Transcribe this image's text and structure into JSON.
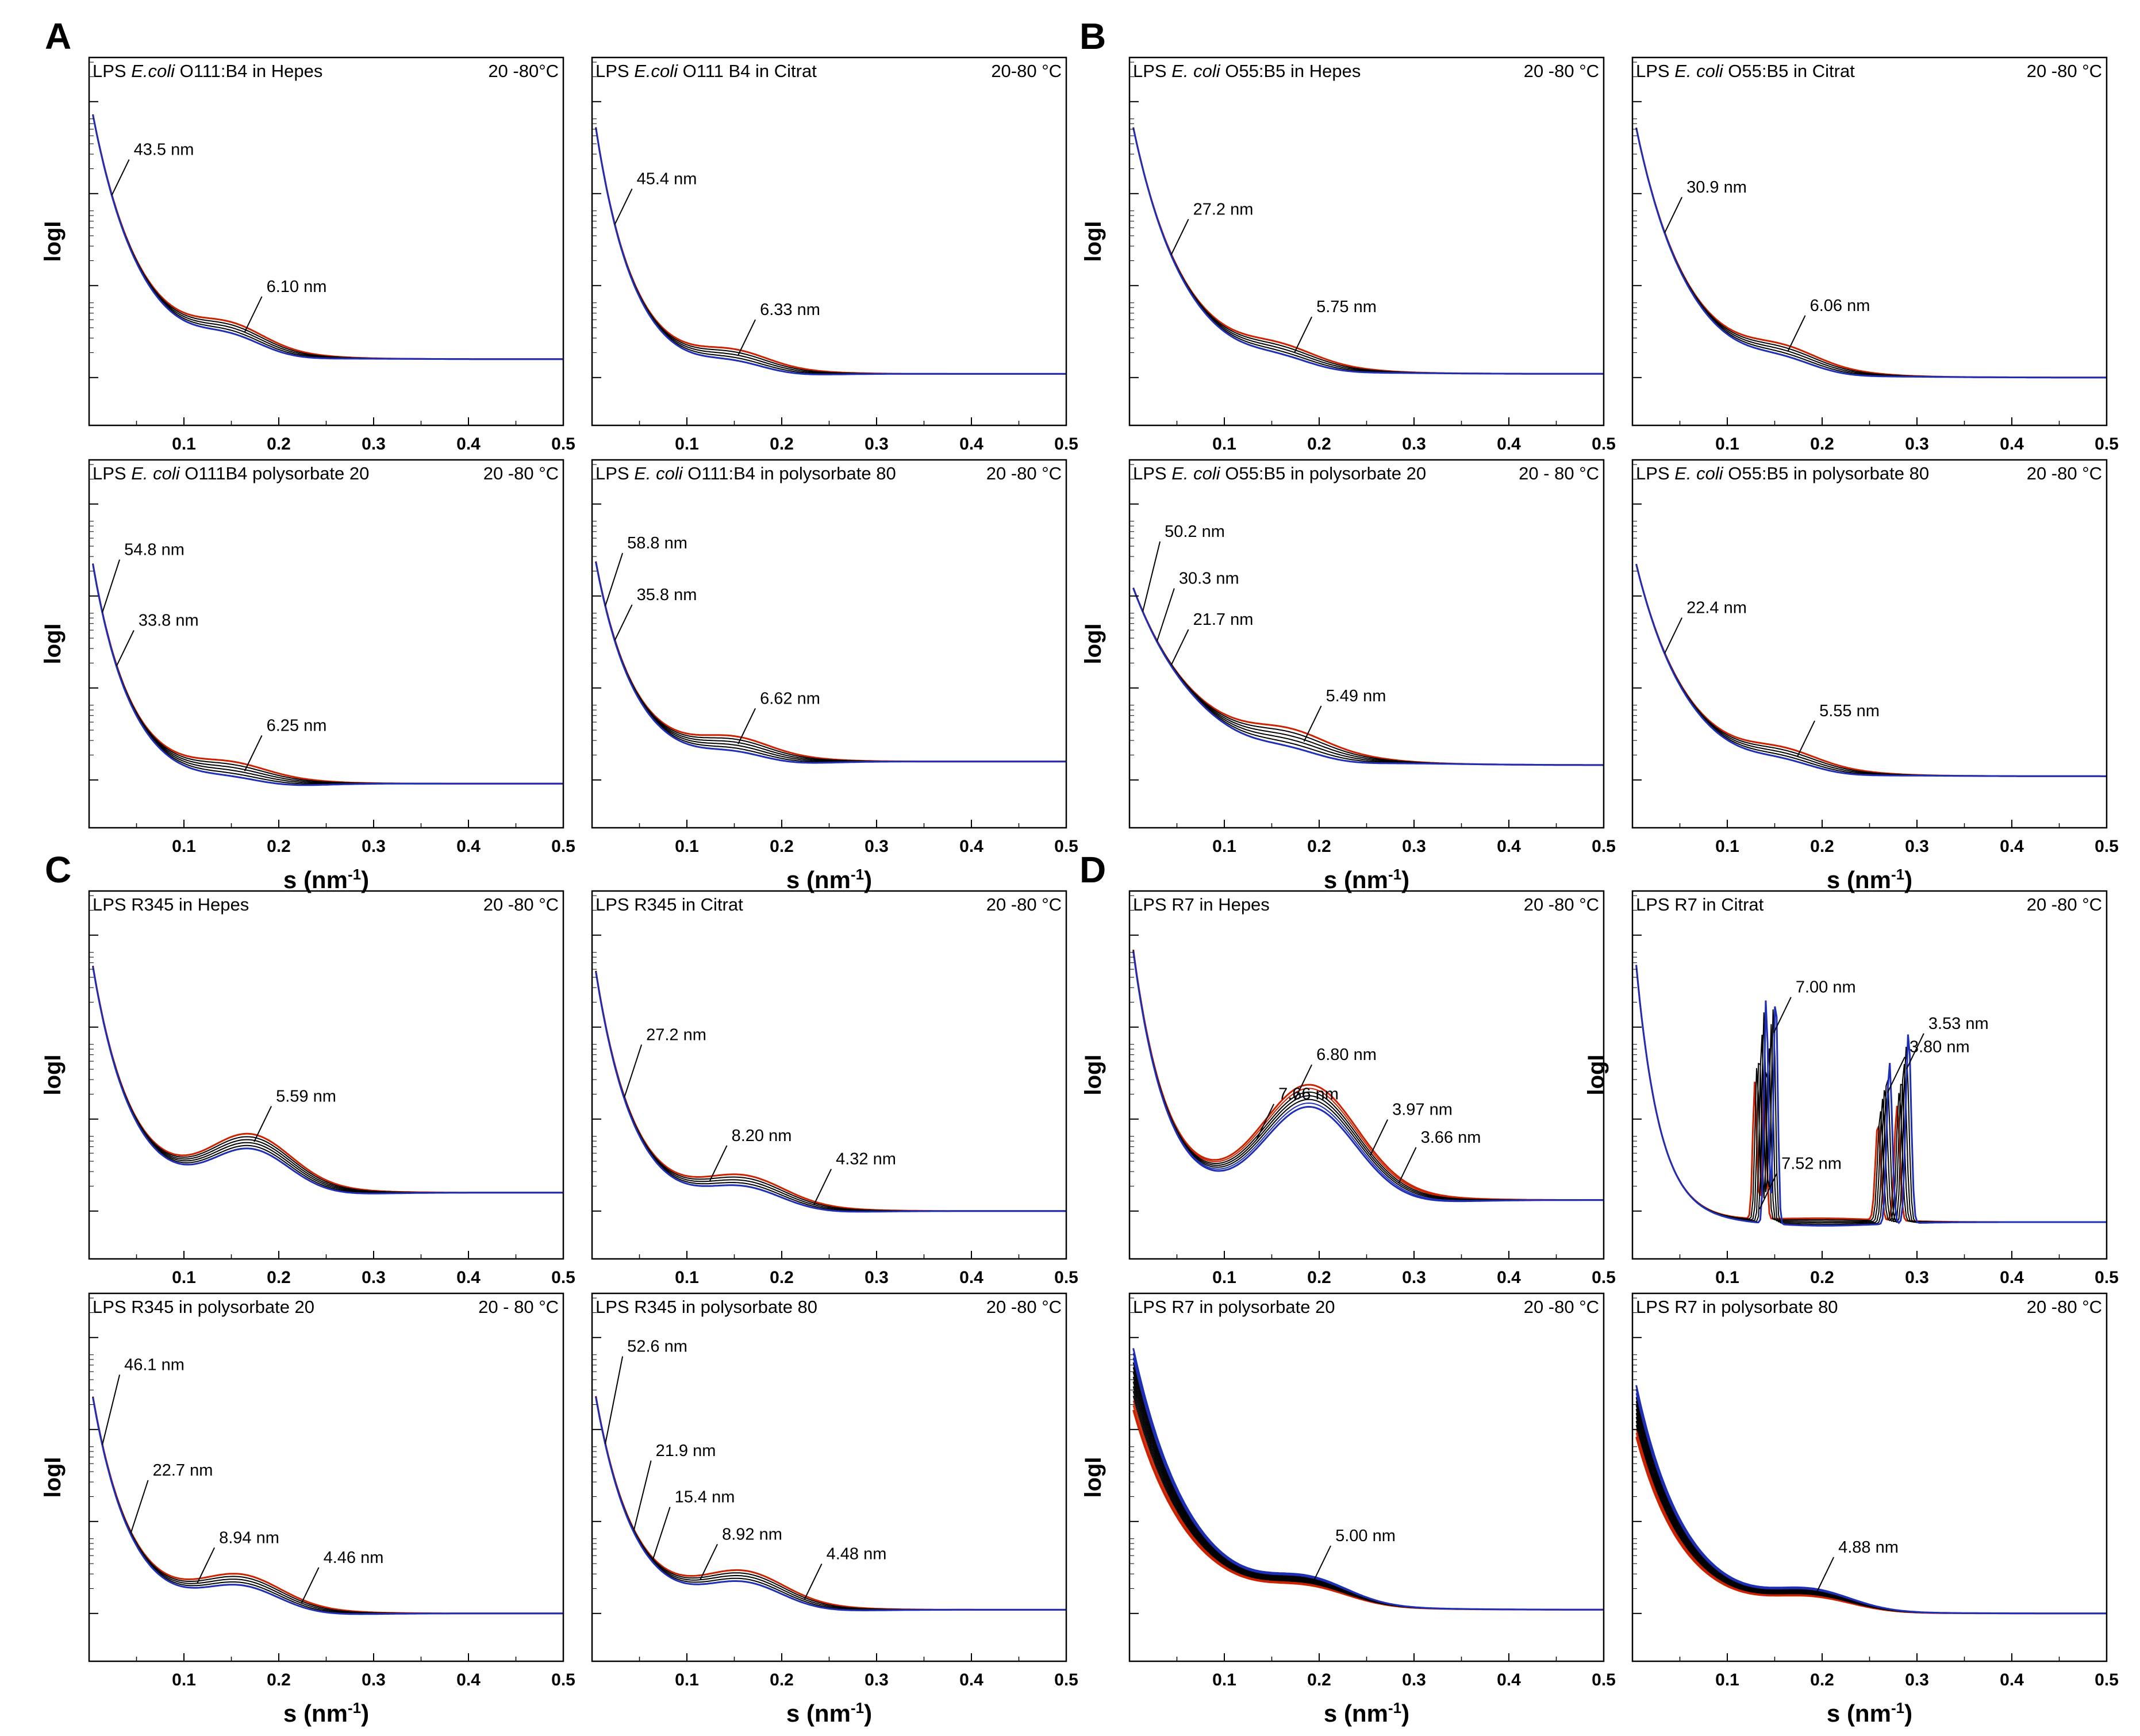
{
  "figure": {
    "panel_letters": [
      "A",
      "B",
      "C",
      "D"
    ],
    "y_axis_label": "logI",
    "x_axis_label_main": "s (nm",
    "x_axis_label_sup": "-1",
    "x_axis_label_close": ")"
  },
  "colors": {
    "frame": "#000000",
    "early": "#cc2200",
    "mid": "#000000",
    "late": "#1f2fb5"
  },
  "chart_data": [
    {
      "id": "A1",
      "group": "A",
      "type": "line",
      "title_prefix": "LPS ",
      "title_italic": "E.coli",
      "title_rest": " O111:B4 in Hepes",
      "temp": "20 -80°C",
      "xlim": [
        0,
        0.5
      ],
      "xticks": [
        "0.1",
        "0.2",
        "0.3",
        "0.4",
        "0.5"
      ],
      "show_xticks": true,
      "show_ylabel": true,
      "show_xlabel": false,
      "curve": {
        "y0": 0.1,
        "decay": 0.05,
        "tail": 0.82,
        "plat": 0.65,
        "bump": 0.05,
        "bumpCenter": 0.15,
        "bumpWidth": 0.05,
        "spread": 0.015,
        "n": 5,
        "growth": 0
      },
      "annotations": [
        {
          "text": "43.5 nm",
          "s": 0.02
        },
        {
          "text": "6.10 nm",
          "s": 0.16
        }
      ]
    },
    {
      "id": "A2",
      "group": "A",
      "type": "line",
      "title_prefix": "LPS ",
      "title_italic": "E.coli",
      "title_rest": " O111 B4 in Citrat",
      "temp": "20-80 °C",
      "xlim": [
        0,
        0.5
      ],
      "xticks": [
        "0.1",
        "0.2",
        "0.3",
        "0.4",
        "0.5"
      ],
      "show_xticks": true,
      "show_ylabel": false,
      "show_xlabel": false,
      "curve": {
        "y0": 0.12,
        "decay": 0.04,
        "tail": 0.86,
        "plat": 0.72,
        "bump": 0.035,
        "bumpCenter": 0.15,
        "bumpWidth": 0.05,
        "spread": 0.015,
        "n": 5,
        "growth": 0
      },
      "annotations": [
        {
          "text": "45.4 nm",
          "s": 0.02
        },
        {
          "text": "6.33 nm",
          "s": 0.15
        }
      ]
    },
    {
      "id": "B1",
      "group": "B",
      "type": "line",
      "title_prefix": "LPS ",
      "title_italic": "E. coli",
      "title_rest": " O55:B5 in Hepes",
      "temp": "20 -80 °C",
      "xlim": [
        0,
        0.5
      ],
      "xticks": [
        "0.1",
        "0.2",
        "0.3",
        "0.4",
        "0.5"
      ],
      "show_xticks": true,
      "show_ylabel": true,
      "show_xlabel": false,
      "curve": {
        "y0": 0.14,
        "decay": 0.055,
        "tail": 0.86,
        "plat": 0.7,
        "bump": 0.03,
        "bumpCenter": 0.16,
        "bumpWidth": 0.05,
        "spread": 0.015,
        "n": 5,
        "growth": 0
      },
      "annotations": [
        {
          "text": "27.2 nm",
          "s": 0.04
        },
        {
          "text": "5.75 nm",
          "s": 0.17
        }
      ]
    },
    {
      "id": "B2",
      "group": "B",
      "type": "line",
      "title_prefix": "LPS ",
      "title_italic": "E. coli",
      "title_rest": " O55:B5 in Citrat",
      "temp": "20 -80 °C",
      "xlim": [
        0,
        0.5
      ],
      "xticks": [
        "0.1",
        "0.2",
        "0.3",
        "0.4",
        "0.5"
      ],
      "show_xticks": true,
      "show_ylabel": false,
      "show_xlabel": false,
      "curve": {
        "y0": 0.14,
        "decay": 0.055,
        "tail": 0.87,
        "plat": 0.7,
        "bump": 0.035,
        "bumpCenter": 0.16,
        "bumpWidth": 0.05,
        "spread": 0.015,
        "n": 5,
        "growth": 0
      },
      "annotations": [
        {
          "text": "30.9 nm",
          "s": 0.03
        },
        {
          "text": "6.06 nm",
          "s": 0.16
        }
      ]
    },
    {
      "id": "A3",
      "group": "A",
      "type": "line",
      "title_prefix": "LPS ",
      "title_italic": "E. coli",
      "title_rest": " O111B4 polysorbate 20",
      "temp": "20 -80 °C",
      "xlim": [
        0,
        0.5
      ],
      "xticks": [
        "0.1",
        "0.2",
        "0.3",
        "0.4",
        "0.5"
      ],
      "show_xticks": true,
      "show_ylabel": true,
      "show_xlabel": true,
      "curve": {
        "y0": 0.22,
        "decay": 0.04,
        "tail": 0.88,
        "plat": 0.74,
        "bump": 0.025,
        "bumpCenter": 0.15,
        "bumpWidth": 0.05,
        "spread": 0.02,
        "n": 6,
        "growth": 0
      },
      "annotations": [
        {
          "text": "54.8 nm",
          "s": 0.01
        },
        {
          "text": "33.8 nm",
          "s": 0.025
        },
        {
          "text": "6.25 nm",
          "s": 0.16
        }
      ]
    },
    {
      "id": "A4",
      "group": "A",
      "type": "line",
      "title_prefix": "LPS ",
      "title_italic": "E. coli",
      "title_rest": " O111:B4 in polysorbate 80",
      "temp": "20 -80 °C",
      "xlim": [
        0,
        0.5
      ],
      "xticks": [
        "0.1",
        "0.2",
        "0.3",
        "0.4",
        "0.5"
      ],
      "show_xticks": true,
      "show_ylabel": false,
      "show_xlabel": true,
      "curve": {
        "y0": 0.22,
        "decay": 0.04,
        "tail": 0.82,
        "plat": 0.67,
        "bump": 0.035,
        "bumpCenter": 0.15,
        "bumpWidth": 0.05,
        "spread": 0.02,
        "n": 6,
        "growth": 0
      },
      "annotations": [
        {
          "text": "58.8 nm",
          "s": 0.01
        },
        {
          "text": "35.8 nm",
          "s": 0.02
        },
        {
          "text": "6.62 nm",
          "s": 0.15
        }
      ]
    },
    {
      "id": "B3",
      "group": "B",
      "type": "line",
      "title_prefix": "LPS ",
      "title_italic": "E. coli",
      "title_rest": " O55:B5 in polysorbate 20",
      "temp": "20 - 80 °C",
      "xlim": [
        0,
        0.5
      ],
      "xticks": [
        "0.1",
        "0.2",
        "0.3",
        "0.4",
        "0.5"
      ],
      "show_xticks": true,
      "show_ylabel": true,
      "show_xlabel": true,
      "curve": {
        "y0": 0.32,
        "decay": 0.07,
        "tail": 0.83,
        "plat": 0.68,
        "bump": 0.03,
        "bumpCenter": 0.17,
        "bumpWidth": 0.05,
        "spread": 0.025,
        "n": 6,
        "growth": 0
      },
      "annotations": [
        {
          "text": "50.2 nm",
          "s": 0.01
        },
        {
          "text": "30.3 nm",
          "s": 0.025
        },
        {
          "text": "21.7 nm",
          "s": 0.04
        },
        {
          "text": "5.49 nm",
          "s": 0.18
        }
      ]
    },
    {
      "id": "B4",
      "group": "B",
      "type": "line",
      "title_prefix": "LPS ",
      "title_italic": "E. coli",
      "title_rest": " O55:B5 in polysorbate 80",
      "temp": "20 -80 °C",
      "xlim": [
        0,
        0.5
      ],
      "xticks": [
        "0.1",
        "0.2",
        "0.3",
        "0.4",
        "0.5"
      ],
      "show_xticks": true,
      "show_ylabel": false,
      "show_xlabel": true,
      "curve": {
        "y0": 0.24,
        "decay": 0.055,
        "tail": 0.86,
        "plat": 0.72,
        "bump": 0.03,
        "bumpCenter": 0.16,
        "bumpWidth": 0.05,
        "spread": 0.015,
        "n": 5,
        "growth": 0
      },
      "annotations": [
        {
          "text": "22.4 nm",
          "s": 0.03
        },
        {
          "text": "5.55 nm",
          "s": 0.17
        }
      ]
    },
    {
      "id": "C1",
      "group": "C",
      "type": "line",
      "title_prefix": "LPS R345 in Hepes",
      "title_italic": "",
      "title_rest": "",
      "temp": "20 -80 °C",
      "xlim": [
        0,
        0.5
      ],
      "xticks": [
        "0.1",
        "0.2",
        "0.3",
        "0.4",
        "0.5"
      ],
      "show_xticks": true,
      "show_ylabel": true,
      "show_xlabel": false,
      "curve": {
        "y0": 0.14,
        "decay": 0.04,
        "tail": 0.82,
        "plat": 0.62,
        "bump": 0.13,
        "bumpCenter": 0.17,
        "bumpWidth": 0.06,
        "spread": 0.02,
        "n": 6,
        "growth": 0
      },
      "annotations": [
        {
          "text": "5.59 nm",
          "s": 0.17
        }
      ]
    },
    {
      "id": "C2",
      "group": "C",
      "type": "line",
      "title_prefix": "LPS R345 in Citrat",
      "title_italic": "",
      "title_rest": "",
      "temp": "20 -80 °C",
      "xlim": [
        0,
        0.5
      ],
      "xticks": [
        "0.1",
        "0.2",
        "0.3",
        "0.4",
        "0.5"
      ],
      "show_xticks": true,
      "show_ylabel": false,
      "show_xlabel": false,
      "curve": {
        "y0": 0.15,
        "decay": 0.04,
        "tail": 0.87,
        "plat": 0.72,
        "bump": 0.07,
        "bumpCenter": 0.16,
        "bumpWidth": 0.06,
        "spread": 0.015,
        "n": 5,
        "growth": 0
      },
      "annotations": [
        {
          "text": "27.2 nm",
          "s": 0.03
        },
        {
          "text": "8.20 nm",
          "s": 0.12
        },
        {
          "text": "4.32 nm",
          "s": 0.23
        }
      ]
    },
    {
      "id": "D1",
      "group": "D",
      "type": "line",
      "title_prefix": "LPS R7 in Hepes",
      "title_italic": "",
      "title_rest": "",
      "temp": "20 -80 °C",
      "xlim": [
        0,
        0.5
      ],
      "xticks": [
        "0.1",
        "0.2",
        "0.3",
        "0.4",
        "0.5"
      ],
      "show_xticks": true,
      "show_ylabel": true,
      "show_xlabel": false,
      "curve": {
        "y0": 0.08,
        "decay": 0.035,
        "tail": 0.84,
        "plat": 0.7,
        "bump": 0.28,
        "bumpCenter": 0.19,
        "bumpWidth": 0.07,
        "spread": 0.03,
        "n": 7,
        "growth": 0
      },
      "annotations": [
        {
          "text": "7.66 nm",
          "s": 0.13
        },
        {
          "text": "6.80 nm",
          "s": 0.17
        },
        {
          "text": "3.97 nm",
          "s": 0.25
        },
        {
          "text": "3.66 nm",
          "s": 0.28
        }
      ]
    },
    {
      "id": "D2",
      "group": "D",
      "type": "peaks",
      "title_prefix": "LPS R7 in Citrat",
      "title_italic": "",
      "title_rest": "",
      "temp": "20 -80 °C",
      "xlim": [
        0,
        0.5
      ],
      "xticks": [
        "0.1",
        "0.2",
        "0.3",
        "0.4",
        "0.5"
      ],
      "show_xticks": true,
      "show_ylabel": true,
      "show_xlabel": false,
      "curve": {
        "y0": 0.08,
        "decay": 0.025,
        "tail": 0.9,
        "plat": 0.84,
        "bump": 0,
        "bumpCenter": 0.2,
        "bumpWidth": 0.05,
        "spread": 0.01,
        "n": 6,
        "growth": 0
      },
      "peaks": [
        {
          "s": 0.135,
          "height": 0.62,
          "width": 0.003
        },
        {
          "s": 0.145,
          "height": 0.64,
          "width": 0.003
        },
        {
          "s": 0.265,
          "height": 0.44,
          "width": 0.004
        },
        {
          "s": 0.285,
          "height": 0.52,
          "width": 0.004
        }
      ],
      "annotations": [
        {
          "text": "7.52 nm",
          "s": 0.13
        },
        {
          "text": "7.00 nm",
          "s": 0.145
        },
        {
          "text": "3.80 nm",
          "s": 0.265
        },
        {
          "text": "3.53 nm",
          "s": 0.285
        }
      ]
    },
    {
      "id": "C3",
      "group": "C",
      "type": "line",
      "title_prefix": "LPS R345 in polysorbate 20",
      "title_italic": "",
      "title_rest": "",
      "temp": "20 - 80 °C",
      "xlim": [
        0,
        0.5
      ],
      "xticks": [
        "0.1",
        "0.2",
        "0.3",
        "0.4",
        "0.5"
      ],
      "show_xticks": true,
      "show_ylabel": true,
      "show_xlabel": true,
      "curve": {
        "y0": 0.22,
        "decay": 0.04,
        "tail": 0.87,
        "plat": 0.7,
        "bump": 0.08,
        "bumpCenter": 0.16,
        "bumpWidth": 0.06,
        "spread": 0.015,
        "n": 5,
        "growth": 0
      },
      "annotations": [
        {
          "text": "46.1 nm",
          "s": 0.01
        },
        {
          "text": "22.7 nm",
          "s": 0.04
        },
        {
          "text": "8.94 nm",
          "s": 0.11
        },
        {
          "text": "4.46 nm",
          "s": 0.22
        }
      ]
    },
    {
      "id": "C4",
      "group": "C",
      "type": "line",
      "title_prefix": "LPS R345 in polysorbate 80",
      "title_italic": "",
      "title_rest": "",
      "temp": "20 -80  °C",
      "xlim": [
        0,
        0.5
      ],
      "xticks": [
        "0.1",
        "0.2",
        "0.3",
        "0.4",
        "0.5"
      ],
      "show_xticks": true,
      "show_ylabel": false,
      "show_xlabel": true,
      "curve": {
        "y0": 0.22,
        "decay": 0.04,
        "tail": 0.86,
        "plat": 0.71,
        "bump": 0.08,
        "bumpCenter": 0.16,
        "bumpWidth": 0.06,
        "spread": 0.015,
        "n": 5,
        "growth": 0
      },
      "annotations": [
        {
          "text": "52.6 nm",
          "s": 0.01
        },
        {
          "text": "21.9 nm",
          "s": 0.04
        },
        {
          "text": "15.4 nm",
          "s": 0.06
        },
        {
          "text": "8.92 nm",
          "s": 0.11
        },
        {
          "text": "4.48 nm",
          "s": 0.22
        }
      ]
    },
    {
      "id": "D3",
      "group": "D",
      "type": "line",
      "title_prefix": "LPS R7 in polysorbate 20",
      "title_italic": "",
      "title_rest": "",
      "temp": "20 -80 °C",
      "xlim": [
        0,
        0.5
      ],
      "xticks": [
        "0.1",
        "0.2",
        "0.3",
        "0.4",
        "0.5"
      ],
      "show_xticks": true,
      "show_ylabel": true,
      "show_xlabel": true,
      "curve": {
        "y0": 0.28,
        "decay": 0.06,
        "tail": 0.86,
        "plat": 0.8,
        "bump": 0.06,
        "bumpCenter": 0.19,
        "bumpWidth": 0.06,
        "spread": 0.005,
        "n": 14,
        "growth": 0.06
      },
      "annotations": [
        {
          "text": "5.00 nm",
          "s": 0.19
        }
      ]
    },
    {
      "id": "D4",
      "group": "D",
      "type": "line",
      "title_prefix": "LPS R7 in polysorbate 80",
      "title_italic": "",
      "title_rest": "",
      "temp": "20 -80 °C",
      "xlim": [
        0,
        0.5
      ],
      "xticks": [
        "0.1",
        "0.2",
        "0.3",
        "0.4",
        "0.5"
      ],
      "show_xticks": true,
      "show_ylabel": false,
      "show_xlabel": true,
      "curve": {
        "y0": 0.35,
        "decay": 0.05,
        "tail": 0.87,
        "plat": 0.8,
        "bump": 0.05,
        "bumpCenter": 0.19,
        "bumpWidth": 0.06,
        "spread": 0.005,
        "n": 14,
        "growth": 0.05
      },
      "annotations": [
        {
          "text": "4.88 nm",
          "s": 0.19
        }
      ]
    }
  ]
}
